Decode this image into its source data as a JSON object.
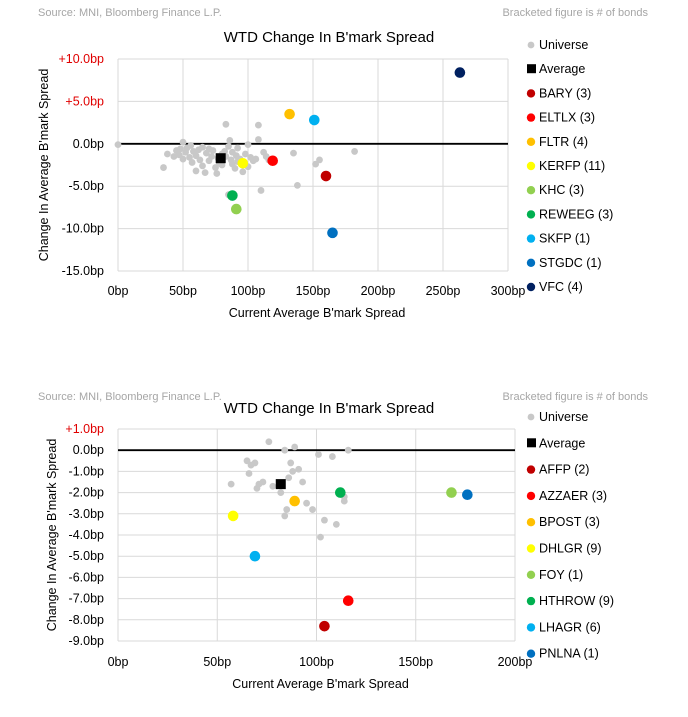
{
  "colors": {
    "universe": "#c8c8c8",
    "average": "#000000",
    "red_tick": "#e00000",
    "source_text": "#a6a6a6",
    "grid": "#d9d9d9",
    "axis_text": "#000000"
  },
  "chart_data": [
    {
      "type": "scatter",
      "title": "WTD Change In B'mark Spread",
      "source": "Source: MNI, Bloomberg Finance L.P.",
      "note": "Bracketed figure is # of bonds",
      "xlabel": "Current Average B'mark Spread",
      "ylabel": "Change In Average B'mark Spread",
      "xlim": [
        0,
        300
      ],
      "ylim": [
        -15,
        10
      ],
      "x_ticks": [
        0,
        50,
        100,
        150,
        200,
        250,
        300
      ],
      "x_tick_labels": [
        "0bp",
        "50bp",
        "100bp",
        "150bp",
        "200bp",
        "250bp",
        "300bp"
      ],
      "y_ticks": [
        10,
        5,
        0,
        -5,
        -10,
        -15
      ],
      "y_tick_labels": [
        "+10.0bp",
        "+5.0bp",
        "0.0bp",
        "-5.0bp",
        "-10.0bp",
        "-15.0bp"
      ],
      "universe": [
        [
          0,
          -0.1
        ],
        [
          35,
          -2.8
        ],
        [
          38,
          -1.2
        ],
        [
          43,
          -1.5
        ],
        [
          45,
          -0.8
        ],
        [
          47,
          -1.3
        ],
        [
          48,
          -0.6
        ],
        [
          50,
          0.2
        ],
        [
          50,
          -1.8
        ],
        [
          52,
          -1.0
        ],
        [
          53,
          -0.5
        ],
        [
          55,
          -1.6
        ],
        [
          56,
          -0.2
        ],
        [
          57,
          -2.2
        ],
        [
          58,
          -0.9
        ],
        [
          60,
          -3.2
        ],
        [
          60,
          -1.4
        ],
        [
          62,
          -0.7
        ],
        [
          63,
          -1.9
        ],
        [
          65,
          -0.4
        ],
        [
          65,
          -2.6
        ],
        [
          67,
          -3.4
        ],
        [
          68,
          -1.1
        ],
        [
          70,
          -0.6
        ],
        [
          70,
          -2.0
        ],
        [
          72,
          -1.5
        ],
        [
          73,
          -0.8
        ],
        [
          75,
          -2.8
        ],
        [
          76,
          -3.5
        ],
        [
          77,
          -1.7
        ],
        [
          78,
          -2.3
        ],
        [
          80,
          -2.5
        ],
        [
          80,
          -1.2
        ],
        [
          82,
          -0.9
        ],
        [
          83,
          2.3
        ],
        [
          83,
          -1.5
        ],
        [
          85,
          -0.3
        ],
        [
          86,
          0.4
        ],
        [
          87,
          -1.9
        ],
        [
          88,
          -2.4
        ],
        [
          88,
          -1.0
        ],
        [
          90,
          -2.9
        ],
        [
          91,
          -1.4
        ],
        [
          92,
          -0.5
        ],
        [
          92,
          -2.1
        ],
        [
          94,
          -1.8
        ],
        [
          96,
          -3.3
        ],
        [
          98,
          -1.2
        ],
        [
          100,
          -0.1
        ],
        [
          100,
          -2.7
        ],
        [
          102,
          -1.6
        ],
        [
          104,
          -2.0
        ],
        [
          106,
          -1.8
        ],
        [
          108,
          0.5
        ],
        [
          108,
          2.2
        ],
        [
          110,
          -5.5
        ],
        [
          112,
          -1.0
        ],
        [
          114,
          -1.5
        ],
        [
          116,
          -1.9
        ],
        [
          135,
          -1.1
        ],
        [
          138,
          -4.9
        ],
        [
          152,
          -2.4
        ],
        [
          155,
          -1.9
        ],
        [
          182,
          -0.9
        ],
        [
          85,
          -6.0
        ]
      ],
      "average": {
        "label": "Average",
        "x": 79,
        "y": -1.7
      },
      "series": [
        {
          "name": "BARY  (3)",
          "x": 160,
          "y": -3.8,
          "color": "#c00000"
        },
        {
          "name": "ELTLX  (3)",
          "x": 119,
          "y": -2.0,
          "color": "#ff0000"
        },
        {
          "name": "FLTR  (4)",
          "x": 132,
          "y": 3.5,
          "color": "#ffc000"
        },
        {
          "name": "KERFP  (11)",
          "x": 96,
          "y": -2.3,
          "color": "#ffff00"
        },
        {
          "name": "KHC  (3)",
          "x": 91,
          "y": -7.7,
          "color": "#92d050"
        },
        {
          "name": "REWEEG  (3)",
          "x": 88,
          "y": -6.1,
          "color": "#00b050"
        },
        {
          "name": "SKFP  (1)",
          "x": 151,
          "y": 2.8,
          "color": "#00b0f0"
        },
        {
          "name": "STGDC  (1)",
          "x": 165,
          "y": -10.5,
          "color": "#0070c0"
        },
        {
          "name": "VFC  (4)",
          "x": 263,
          "y": 8.4,
          "color": "#002060"
        }
      ],
      "legend_universe": "Universe"
    },
    {
      "type": "scatter",
      "title": "WTD Change In B'mark Spread",
      "source": "Source: MNI, Bloomberg Finance L.P.",
      "note": "Bracketed figure is # of bonds",
      "xlabel": "Current Average B'mark Spread",
      "ylabel": "Change In Average B'mark Spread",
      "xlim": [
        0,
        200
      ],
      "ylim": [
        -9,
        1
      ],
      "x_ticks": [
        0,
        50,
        100,
        150,
        200
      ],
      "x_tick_labels": [
        "0bp",
        "50bp",
        "100bp",
        "150bp",
        "200bp"
      ],
      "y_ticks": [
        1,
        0,
        -1,
        -2,
        -3,
        -4,
        -5,
        -6,
        -7,
        -8,
        -9
      ],
      "y_tick_labels": [
        "+1.0bp",
        "0.0bp",
        "-1.0bp",
        "-2.0bp",
        "-3.0bp",
        "-4.0bp",
        "-5.0bp",
        "-6.0bp",
        "-7.0bp",
        "-8.0bp",
        "-9.0bp"
      ],
      "universe": [
        [
          76,
          0.4
        ],
        [
          84,
          0.0
        ],
        [
          87,
          -0.6
        ],
        [
          86,
          -1.3
        ],
        [
          89,
          0.15
        ],
        [
          93,
          -1.5
        ],
        [
          65,
          -0.5
        ],
        [
          66,
          -1.1
        ],
        [
          67,
          -0.7
        ],
        [
          69,
          -0.6
        ],
        [
          70,
          -1.8
        ],
        [
          71,
          -1.6
        ],
        [
          73,
          -1.5
        ],
        [
          78,
          -1.7
        ],
        [
          82,
          -2.0
        ],
        [
          84,
          -3.1
        ],
        [
          85,
          -2.8
        ],
        [
          88,
          -1.0
        ],
        [
          91,
          -0.9
        ],
        [
          95,
          -2.5
        ],
        [
          98,
          -2.8
        ],
        [
          101,
          -0.2
        ],
        [
          102,
          -4.1
        ],
        [
          104,
          -3.3
        ],
        [
          108,
          -0.3
        ],
        [
          110,
          -3.5
        ],
        [
          114,
          -2.2
        ],
        [
          116,
          0.0
        ],
        [
          114,
          -2.4
        ],
        [
          57,
          -1.6
        ]
      ],
      "average": {
        "label": "Average",
        "x": 82,
        "y": -1.6
      },
      "series": [
        {
          "name": "AFFP  (2)",
          "x": 104,
          "y": -8.3,
          "color": "#c00000"
        },
        {
          "name": "AZZAER  (3)",
          "x": 116,
          "y": -7.1,
          "color": "#ff0000"
        },
        {
          "name": "BPOST  (3)",
          "x": 89,
          "y": -2.4,
          "color": "#ffc000"
        },
        {
          "name": "DHLGR  (9)",
          "x": 58,
          "y": -3.1,
          "color": "#ffff00"
        },
        {
          "name": "FOY  (1)",
          "x": 168,
          "y": -2.0,
          "color": "#92d050"
        },
        {
          "name": "HTHROW  (9)",
          "x": 112,
          "y": -2.0,
          "color": "#00b050"
        },
        {
          "name": "LHAGR  (6)",
          "x": 69,
          "y": -5.0,
          "color": "#00b0f0"
        },
        {
          "name": "PNLNA  (1)",
          "x": 176,
          "y": -2.1,
          "color": "#0070c0"
        }
      ],
      "legend_universe": "Universe"
    }
  ]
}
